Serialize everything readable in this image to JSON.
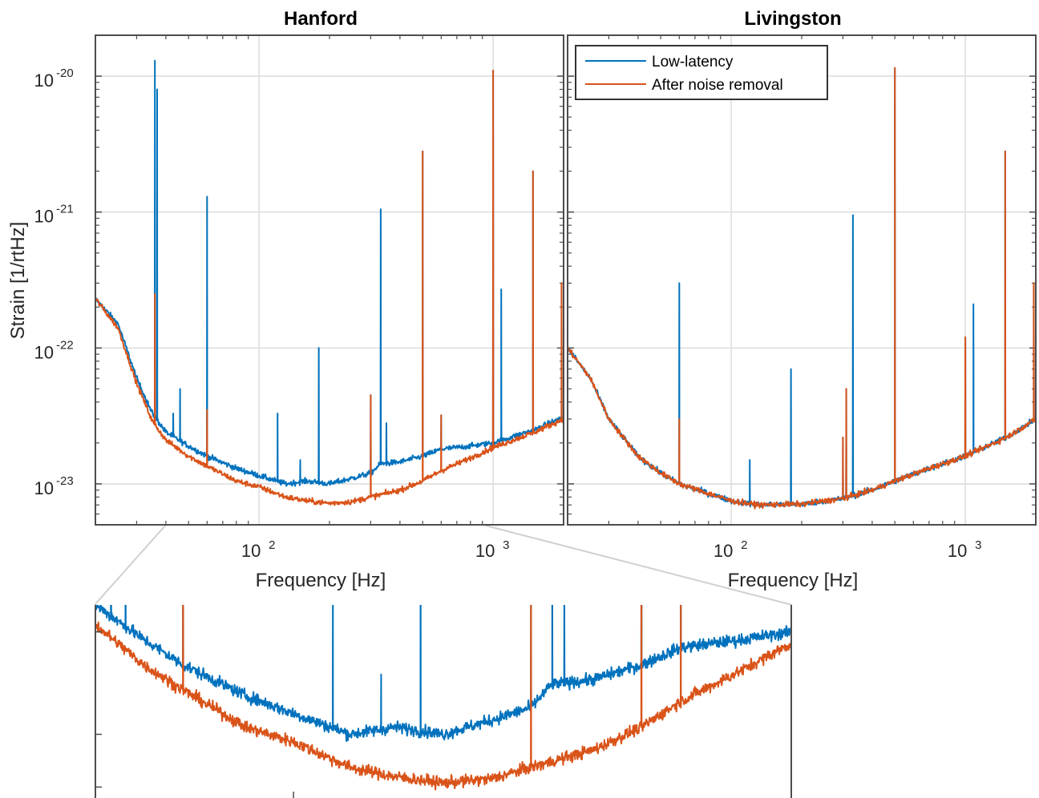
{
  "chart_data": [
    {
      "type": "line",
      "title": "Hanford",
      "xlabel": "Frequency [Hz]",
      "ylabel": "Strain [1/rtHz]",
      "xscale": "log",
      "yscale": "log",
      "xlim": [
        20,
        2000
      ],
      "ylim": [
        5e-24,
        2e-20
      ],
      "grid": true,
      "x_ticks": [
        {
          "base": "10",
          "exp": "2",
          "value": 100
        },
        {
          "base": "10",
          "exp": "3",
          "value": 1000
        }
      ],
      "y_ticks": [
        {
          "base": "10",
          "exp": "-20",
          "value": 1e-20
        },
        {
          "base": "10",
          "exp": "-21",
          "value": 1e-21
        },
        {
          "base": "10",
          "exp": "-22",
          "value": 1e-22
        },
        {
          "base": "10",
          "exp": "-23",
          "value": 1e-23
        }
      ],
      "floor": {
        "low_latency": [
          [
            20,
            2.3e-22
          ],
          [
            25,
            1.5e-22
          ],
          [
            30,
            6e-23
          ],
          [
            35,
            3.3e-23
          ],
          [
            40,
            2.4e-23
          ],
          [
            50,
            1.9e-23
          ],
          [
            60,
            1.6e-23
          ],
          [
            80,
            1.3e-23
          ],
          [
            100,
            1.15e-23
          ],
          [
            130,
            1e-23
          ],
          [
            160,
            1.05e-23
          ],
          [
            200,
            1e-23
          ],
          [
            250,
            1.1e-23
          ],
          [
            300,
            1.2e-23
          ],
          [
            330,
            1.4e-23
          ],
          [
            400,
            1.45e-23
          ],
          [
            500,
            1.6e-23
          ],
          [
            600,
            1.8e-23
          ],
          [
            800,
            1.9e-23
          ],
          [
            1000,
            2e-23
          ],
          [
            1500,
            2.5e-23
          ],
          [
            2000,
            3.1e-23
          ]
        ],
        "after_noise_removal": [
          [
            20,
            2.3e-22
          ],
          [
            25,
            1.4e-22
          ],
          [
            30,
            5.5e-23
          ],
          [
            35,
            2.9e-23
          ],
          [
            40,
            2.1e-23
          ],
          [
            50,
            1.6e-23
          ],
          [
            60,
            1.35e-23
          ],
          [
            80,
            1.05e-23
          ],
          [
            100,
            9.5e-24
          ],
          [
            130,
            8e-24
          ],
          [
            160,
            7.5e-24
          ],
          [
            200,
            7.2e-24
          ],
          [
            250,
            7.4e-24
          ],
          [
            300,
            8e-24
          ],
          [
            400,
            9e-24
          ],
          [
            500,
            1.05e-23
          ],
          [
            600,
            1.25e-23
          ],
          [
            800,
            1.55e-23
          ],
          [
            1000,
            1.85e-23
          ],
          [
            1500,
            2.4e-23
          ],
          [
            2000,
            3e-23
          ]
        ]
      },
      "peaks": {
        "low_latency": [
          [
            35.9,
            1.3e-20
          ],
          [
            36.7,
            8e-21
          ],
          [
            40,
            2.5e-23
          ],
          [
            43,
            3.3e-23
          ],
          [
            46,
            5e-23
          ],
          [
            60,
            1.3e-21
          ],
          [
            120,
            3.3e-23
          ],
          [
            150,
            1.5e-23
          ],
          [
            180,
            1e-22
          ],
          [
            300,
            4.5e-23
          ],
          [
            331,
            1.05e-21
          ],
          [
            350,
            2.8e-23
          ],
          [
            500,
            2.8e-21
          ],
          [
            600,
            3.2e-23
          ],
          [
            1000,
            1.1e-20
          ],
          [
            1083,
            2.7e-22
          ],
          [
            1480,
            2e-21
          ],
          [
            1960,
            3e-22
          ]
        ],
        "after_noise_removal": [
          [
            35.9,
            2.5e-22
          ],
          [
            60,
            3.5e-23
          ],
          [
            300,
            4.5e-23
          ],
          [
            500,
            2.8e-21
          ],
          [
            600,
            3.2e-23
          ],
          [
            1000,
            1.1e-20
          ],
          [
            1480,
            2e-21
          ],
          [
            1960,
            3e-22
          ]
        ]
      },
      "series": [
        {
          "name": "Low-latency",
          "color": "#0072BD",
          "key": "low_latency"
        },
        {
          "name": "After noise removal",
          "color": "#D95319",
          "key": "after_noise_removal"
        }
      ]
    },
    {
      "type": "line",
      "title": "Livingston",
      "xlabel": "Frequency [Hz]",
      "xscale": "log",
      "yscale": "log",
      "xlim": [
        20,
        2000
      ],
      "ylim": [
        5e-24,
        2e-20
      ],
      "grid": true,
      "legend_location": "top-left",
      "x_ticks": [
        {
          "base": "10",
          "exp": "2",
          "value": 100
        },
        {
          "base": "10",
          "exp": "3",
          "value": 1000
        }
      ],
      "floor": {
        "low_latency": [
          [
            20,
            1e-22
          ],
          [
            25,
            6e-23
          ],
          [
            30,
            3e-23
          ],
          [
            40,
            1.6e-23
          ],
          [
            50,
            1.2e-23
          ],
          [
            60,
            1e-23
          ],
          [
            80,
            8.5e-24
          ],
          [
            100,
            7.5e-24
          ],
          [
            130,
            7e-24
          ],
          [
            200,
            7.1e-24
          ],
          [
            300,
            7.8e-24
          ],
          [
            400,
            9e-24
          ],
          [
            500,
            1.05e-23
          ],
          [
            700,
            1.3e-23
          ],
          [
            1000,
            1.6e-23
          ],
          [
            1500,
            2.2e-23
          ],
          [
            2000,
            3e-23
          ]
        ],
        "after_noise_removal": [
          [
            20,
            1e-22
          ],
          [
            25,
            6e-23
          ],
          [
            30,
            3e-23
          ],
          [
            40,
            1.6e-23
          ],
          [
            50,
            1.2e-23
          ],
          [
            60,
            1e-23
          ],
          [
            80,
            8.5e-24
          ],
          [
            100,
            7.5e-24
          ],
          [
            130,
            7e-24
          ],
          [
            200,
            7.1e-24
          ],
          [
            300,
            7.8e-24
          ],
          [
            400,
            9e-24
          ],
          [
            500,
            1.05e-23
          ],
          [
            700,
            1.3e-23
          ],
          [
            1000,
            1.6e-23
          ],
          [
            1500,
            2.2e-23
          ],
          [
            2000,
            3e-23
          ]
        ]
      },
      "peaks": {
        "low_latency": [
          [
            60,
            3e-22
          ],
          [
            120,
            1.5e-23
          ],
          [
            180,
            7e-23
          ],
          [
            300,
            2.2e-23
          ],
          [
            310,
            5e-23
          ],
          [
            331,
            9.5e-22
          ],
          [
            500,
            1.15e-20
          ],
          [
            1000,
            1.2e-22
          ],
          [
            1083,
            2.1e-22
          ],
          [
            1480,
            2.8e-21
          ],
          [
            1960,
            3e-22
          ]
        ],
        "after_noise_removal": [
          [
            60,
            3e-23
          ],
          [
            300,
            2.2e-23
          ],
          [
            310,
            5e-23
          ],
          [
            500,
            1.15e-20
          ],
          [
            1000,
            1.2e-22
          ],
          [
            1480,
            2.8e-21
          ],
          [
            1960,
            3e-22
          ]
        ]
      },
      "series": [
        {
          "name": "Low-latency",
          "color": "#0072BD",
          "key": "low_latency"
        },
        {
          "name": "After noise removal",
          "color": "#D95319",
          "key": "after_noise_removal"
        }
      ]
    },
    {
      "type": "line",
      "inset_of": "Hanford",
      "xscale": "log",
      "yscale": "log",
      "xlim": [
        40,
        1000
      ],
      "ylim": [
        6.5e-24,
        2.4e-23
      ],
      "grid": false,
      "series": [
        {
          "name": "Low-latency",
          "color": "#0072BD",
          "key": "low_latency"
        },
        {
          "name": "After noise removal",
          "color": "#D95319",
          "key": "after_noise_removal"
        }
      ]
    }
  ],
  "colors": {
    "low_latency": "#0072BD",
    "after_noise_removal": "#D95319",
    "axes": "#4D4D4D",
    "grid": "#DCDCDC"
  }
}
